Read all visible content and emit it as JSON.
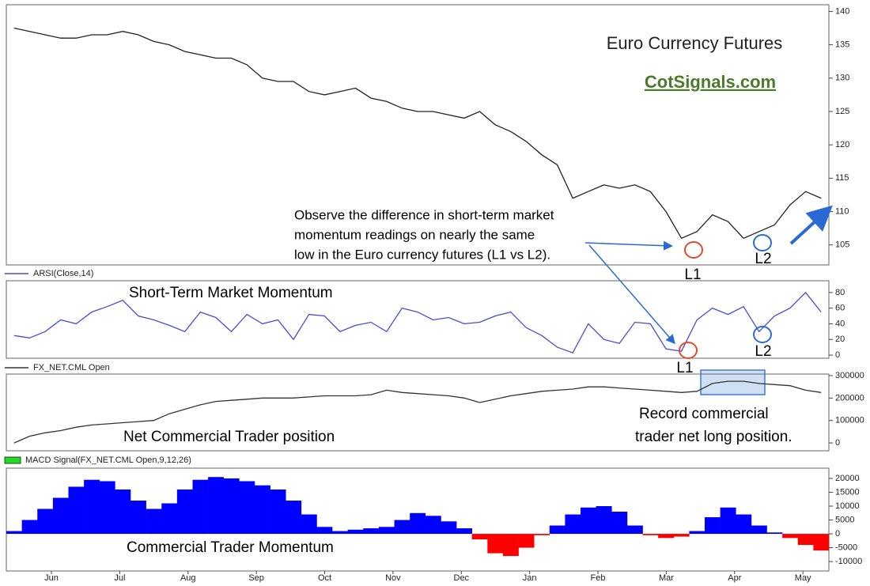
{
  "chart_data": [
    {
      "type": "line",
      "title": "Euro Currency Futures",
      "annotations": [
        "CotSignals.com",
        [
          "Observe the difference in short-term market",
          "momentum readings on nearly the same",
          "low in the Euro currency futures (L1 vs L2)."
        ],
        "L1",
        "L2"
      ],
      "color": "#222222",
      "values": [
        137.5,
        137,
        136.5,
        136,
        136,
        136.5,
        136.5,
        137,
        136.5,
        135.5,
        135,
        134,
        133.5,
        133,
        133,
        132,
        130,
        129.5,
        129.5,
        128,
        127.5,
        128,
        128.5,
        127,
        126.5,
        125.5,
        125,
        125,
        124.5,
        124,
        125,
        123,
        122,
        120.5,
        118.5,
        117,
        112,
        113,
        114,
        113.5,
        114,
        113,
        110,
        106,
        107,
        109.5,
        108.5,
        106,
        107,
        108,
        111,
        113,
        112
      ],
      "ylim": [
        102,
        141
      ],
      "yticks": [
        105,
        110,
        115,
        120,
        125,
        130,
        135,
        140
      ]
    },
    {
      "type": "line",
      "title": "Short-Term Market Momentum",
      "annotations": [
        "L1",
        "L2"
      ],
      "series": [
        {
          "name": "ARSI(Close,14)",
          "color": "#4a4ad8",
          "values": [
            25,
            22,
            30,
            45,
            40,
            55,
            62,
            70,
            50,
            45,
            38,
            30,
            55,
            48,
            30,
            52,
            40,
            45,
            20,
            52,
            50,
            30,
            38,
            42,
            30,
            60,
            55,
            45,
            48,
            40,
            42,
            50,
            55,
            35,
            25,
            10,
            3,
            40,
            20,
            15,
            42,
            40,
            8,
            5,
            45,
            60,
            52,
            62,
            30,
            50,
            60,
            80,
            55
          ]
        }
      ],
      "ylim": [
        -4,
        95
      ],
      "yticks": [
        0,
        20,
        40,
        60,
        80
      ]
    },
    {
      "type": "line",
      "title": "Net Commercial Trader position",
      "annotations": [
        [
          "Record commercial",
          "trader net long position."
        ]
      ],
      "series": [
        {
          "name": "FX_NET.CML Open",
          "color": "#333333",
          "values": [
            0,
            30000,
            45000,
            55000,
            70000,
            80000,
            85000,
            90000,
            95000,
            100000,
            130000,
            150000,
            170000,
            185000,
            190000,
            195000,
            200000,
            200000,
            200000,
            205000,
            210000,
            210000,
            210000,
            215000,
            235000,
            225000,
            220000,
            215000,
            210000,
            200000,
            180000,
            195000,
            210000,
            220000,
            230000,
            235000,
            240000,
            250000,
            250000,
            245000,
            240000,
            235000,
            230000,
            225000,
            230000,
            265000,
            275000,
            275000,
            265000,
            260000,
            255000,
            235000,
            225000
          ]
        }
      ],
      "ylim": [
        -35000,
        307000
      ],
      "yticks": [
        0,
        100000,
        200000,
        300000
      ]
    },
    {
      "type": "bar",
      "title": "Commercial Trader Momentum",
      "series": [
        {
          "name": "MACD Signal(FX_NET.CML Open,9,12,26)",
          "color": "#0000ff",
          "negative_color": "#ff0000",
          "legend_color": "#22dd22",
          "values": [
            1000,
            5000,
            9000,
            13000,
            17000,
            19500,
            19000,
            16000,
            12000,
            9000,
            11000,
            16000,
            19500,
            20500,
            20000,
            19000,
            17500,
            16000,
            12000,
            7000,
            2500,
            1000,
            1500,
            2000,
            2500,
            5000,
            7500,
            6500,
            4500,
            2000,
            -2000,
            -7000,
            -8000,
            -5000,
            -500,
            3000,
            7000,
            9500,
            10000,
            8000,
            3000,
            -500,
            -1500,
            -1000,
            1000,
            6000,
            9500,
            7000,
            3000,
            500,
            -1500,
            -4000,
            -6000
          ]
        }
      ],
      "ylim": [
        -13400,
        23700
      ],
      "yticks": [
        -10000,
        -5000,
        0,
        5000,
        10000,
        15000,
        20000
      ],
      "xlim": [
        -0.66,
        11.38
      ],
      "xticks": [
        {
          "value": 0,
          "label": "Jun"
        },
        {
          "value": 1,
          "label": "Jul"
        },
        {
          "value": 2,
          "label": "Aug"
        },
        {
          "value": 3,
          "label": "Sep"
        },
        {
          "value": 4,
          "label": "Oct"
        },
        {
          "value": 5,
          "label": "Nov"
        },
        {
          "value": 6,
          "label": "Dec"
        },
        {
          "value": 7,
          "label": "Jan"
        },
        {
          "value": 8,
          "label": "Feb"
        },
        {
          "value": 9,
          "label": "Mar"
        },
        {
          "value": 10,
          "label": "Apr"
        },
        {
          "value": 11,
          "label": "May"
        }
      ]
    }
  ]
}
